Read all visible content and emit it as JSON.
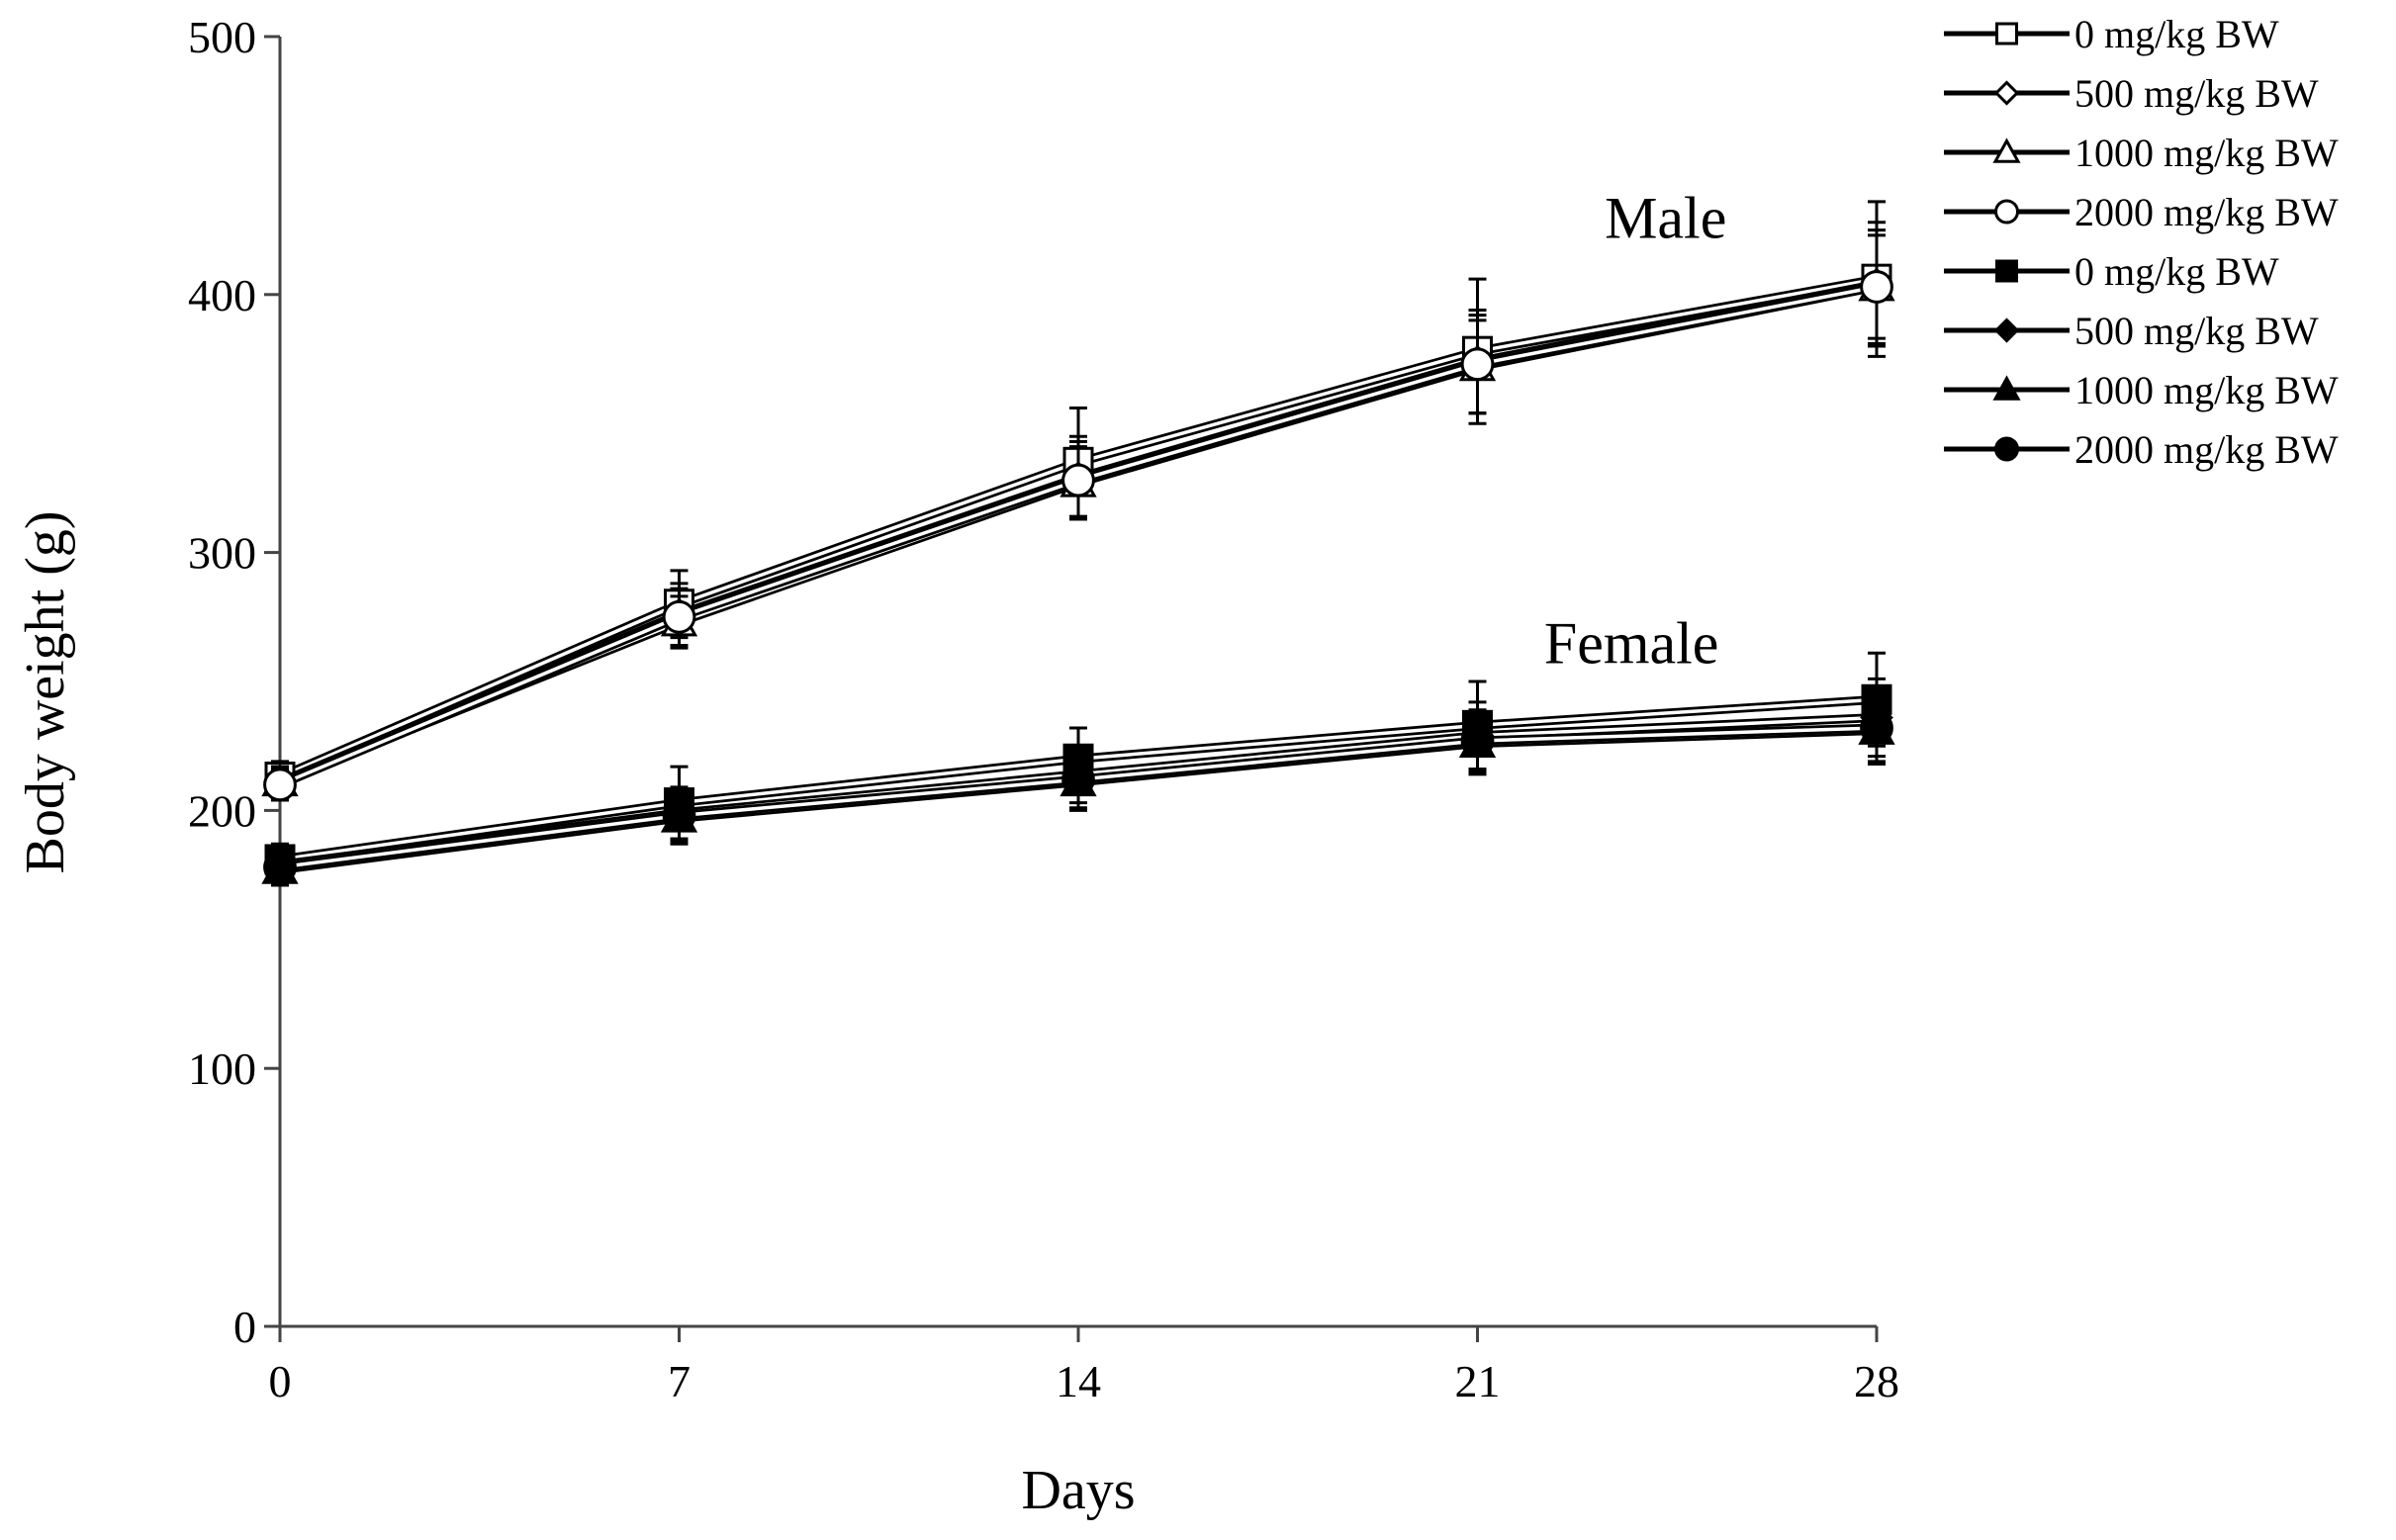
{
  "chart_data": {
    "type": "line",
    "title": "",
    "xlabel": "Days",
    "ylabel": "Body weight (g)",
    "x": [
      0,
      7,
      14,
      21,
      28
    ],
    "xticks": [
      "0",
      "7",
      "14",
      "21",
      "28"
    ],
    "xlim": [
      0,
      28
    ],
    "yticks": [
      "0",
      "100",
      "200",
      "300",
      "400",
      "500"
    ],
    "ylim": [
      0,
      500
    ],
    "grid": false,
    "legend_position": "top-right",
    "annotations": [
      {
        "text": "Male",
        "x": 24.3,
        "y": 422
      },
      {
        "text": "Female",
        "x": 23.7,
        "y": 257
      }
    ],
    "series": [
      {
        "name": "0 mg/kg BW",
        "group": "Male",
        "marker": "square",
        "filled": false,
        "values": [
          213,
          280,
          335,
          378,
          406
        ],
        "errors": [
          6,
          13,
          21,
          28,
          30
        ]
      },
      {
        "name": "500 mg/kg BW",
        "group": "Male",
        "marker": "diamond",
        "filled": false,
        "values": [
          211,
          276,
          329,
          374,
          404
        ],
        "errors": [
          6,
          12,
          16,
          20,
          24
        ]
      },
      {
        "name": "1000 mg/kg BW",
        "group": "Male",
        "marker": "triangle",
        "filled": false,
        "values": [
          211,
          273,
          327,
          372,
          403
        ],
        "errors": [
          6,
          10,
          14,
          18,
          22
        ]
      },
      {
        "name": "2000 mg/kg BW",
        "group": "Male",
        "marker": "circle",
        "filled": false,
        "values": [
          210,
          275,
          328,
          373,
          403
        ],
        "errors": [
          6,
          11,
          15,
          19,
          20
        ]
      },
      {
        "name": "0 mg/kg BW",
        "group": "Female",
        "marker": "square",
        "filled": true,
        "values": [
          181,
          203,
          220,
          233,
          243
        ],
        "errors": [
          6,
          14,
          12,
          17,
          18
        ]
      },
      {
        "name": "500 mg/kg BW",
        "group": "Female",
        "marker": "diamond",
        "filled": true,
        "values": [
          179,
          199,
          214,
          229,
          236
        ],
        "errors": [
          6,
          10,
          11,
          13,
          15
        ]
      },
      {
        "name": "1000 mg/kg BW",
        "group": "Female",
        "marker": "triangle",
        "filled": true,
        "values": [
          177,
          197,
          211,
          226,
          231
        ],
        "errors": [
          6,
          10,
          11,
          12,
          13
        ]
      },
      {
        "name": "2000 mg/kg BW",
        "group": "Female",
        "marker": "circle",
        "filled": true,
        "values": [
          178,
          198,
          212,
          227,
          232
        ],
        "errors": [
          6,
          10,
          11,
          12,
          13
        ]
      }
    ]
  }
}
